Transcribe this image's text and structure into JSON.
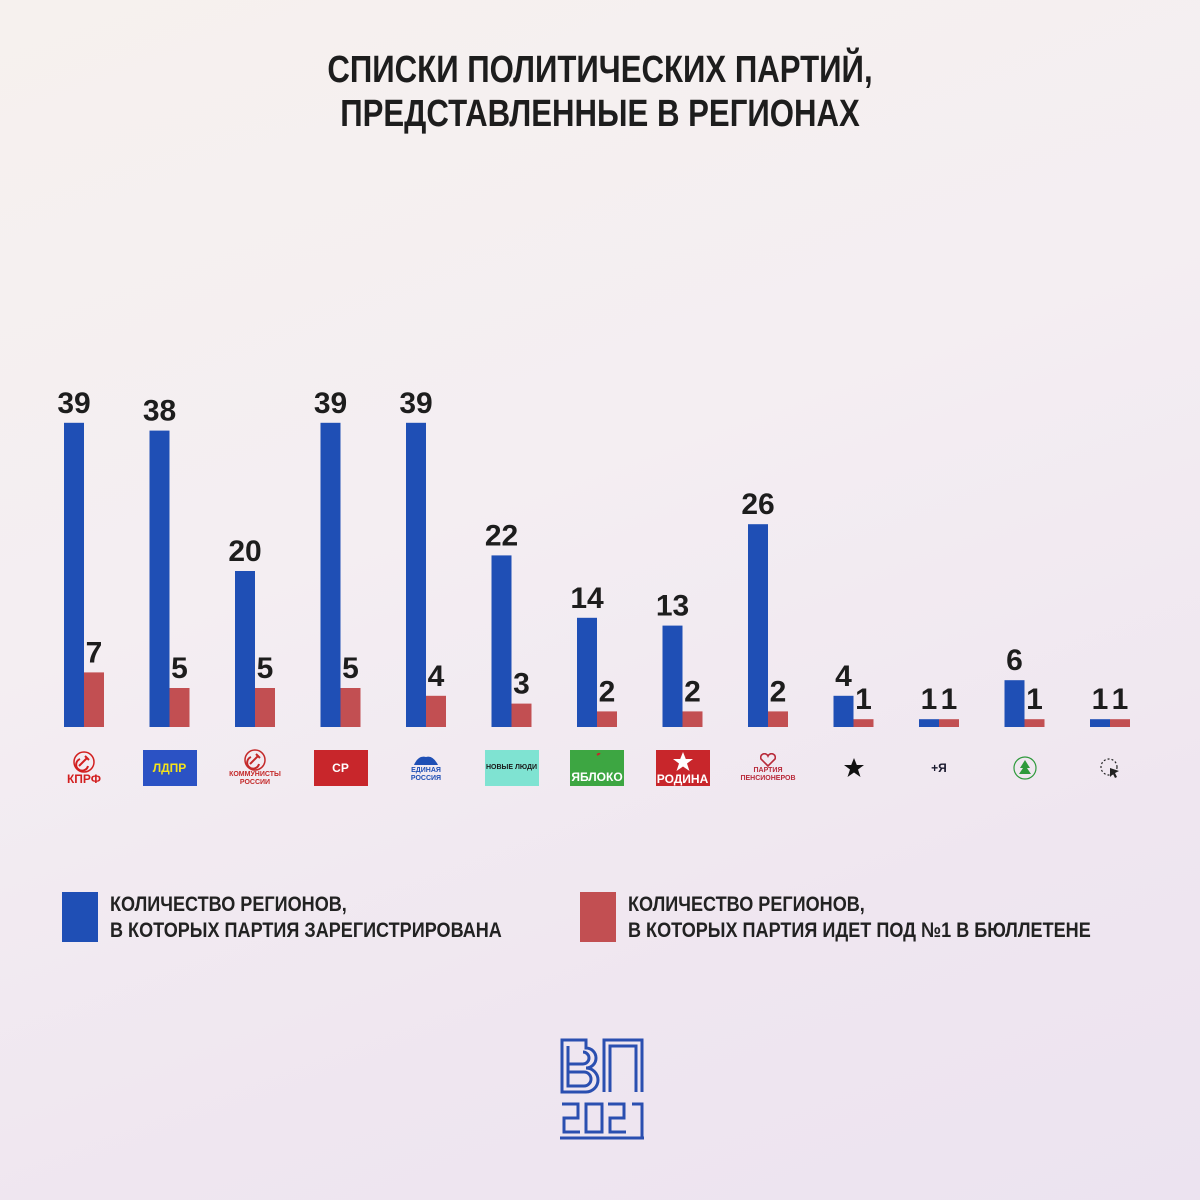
{
  "title": [
    "СПИСКИ ПОЛИТИЧЕСКИХ ПАРТИЙ,",
    "ПРЕДСТАВЛЕННЫЕ В РЕГИОНАХ"
  ],
  "colors": {
    "blue": "#1f4fb5",
    "red": "#c24f52",
    "text": "#1d1d1d"
  },
  "chart_data": {
    "type": "bar",
    "categories": [
      "КПРФ",
      "ЛДПР",
      "КОММУНИСТЫ РОССИИ",
      "СР",
      "ЕДИНАЯ РОССИЯ",
      "НОВЫЕ ЛЮДИ",
      "ЯБЛОКО",
      "РОДИНА",
      "ПАРТИЯ ПЕНСИОНЕРОВ",
      "star-logo",
      "+Я",
      "ЗЕЛЁНЫЕ",
      "cursor-logo"
    ],
    "series": [
      {
        "name": "КОЛИЧЕСТВО РЕГИОНОВ, В КОТОРЫХ ПАРТИЯ ЗАРЕГИСТРИРОВАНА",
        "color": "#1f4fb5",
        "values": [
          39,
          38,
          20,
          39,
          39,
          22,
          14,
          13,
          26,
          4,
          1,
          6,
          1
        ]
      },
      {
        "name": "КОЛИЧЕСТВО РЕГИОНОВ, В КОТОРЫХ ПАРТИЯ ИДЕТ ПОД №1 В БЮЛЛЕТЕНЕ",
        "color": "#c24f52",
        "values": [
          7,
          5,
          5,
          5,
          4,
          3,
          2,
          2,
          2,
          1,
          1,
          1,
          1
        ]
      }
    ],
    "ylim": [
      0,
      40
    ]
  },
  "logos": [
    {
      "text": "КПРФ",
      "icon": "hammer-sickle-icon",
      "color": "#d21f1f",
      "bg": ""
    },
    {
      "text": "ЛДПР",
      "icon": "",
      "color": "#f4e31a",
      "bg": "#2b52c4"
    },
    {
      "text": "КОММУНИСТЫ РОССИИ",
      "icon": "hammer-sickle-icon",
      "color": "#c42a2a",
      "bg": ""
    },
    {
      "text": "СР",
      "icon": "",
      "color": "#ffffff",
      "bg": "#c8262b"
    },
    {
      "text": "ЕДИНАЯ РОССИЯ",
      "icon": "bear-icon",
      "color": "#1f4fb5",
      "bg": ""
    },
    {
      "text": "НОВЫЕ ЛЮДИ",
      "icon": "",
      "color": "#1a1a1a",
      "bg": "#7fe3d2"
    },
    {
      "text": "ЯБЛОКО",
      "icon": "apple-icon",
      "color": "#ffffff",
      "bg": "#3da642"
    },
    {
      "text": "РОДИНА",
      "icon": "star-icon",
      "color": "#ffffff",
      "bg": "#c8262b"
    },
    {
      "text": "ПАРТИЯ ПЕНСИОНЕРОВ",
      "icon": "heart-icon",
      "color": "#b82a3a",
      "bg": ""
    },
    {
      "text": "",
      "icon": "star-icon",
      "color": "#111111",
      "bg": ""
    },
    {
      "text": "+Я",
      "icon": "",
      "color": "#1a1a2e",
      "bg": ""
    },
    {
      "text": "",
      "icon": "tree-icon",
      "color": "#2f9a3c",
      "bg": ""
    },
    {
      "text": "",
      "icon": "cursor-icon",
      "color": "#222222",
      "bg": ""
    }
  ],
  "legend": {
    "blue": [
      "КОЛИЧЕСТВО РЕГИОНОВ,",
      "В КОТОРЫХ ПАРТИЯ ЗАРЕГИСТРИРОВАНА"
    ],
    "red": [
      "КОЛИЧЕСТВО РЕГИОНОВ,",
      "В КОТОРЫХ ПАРТИЯ ИДЕТ ПОД №1 В БЮЛЛЕТЕНЕ"
    ]
  },
  "brand": {
    "icon": "vp-2021-logo-icon",
    "color": "#2a4fb0"
  }
}
